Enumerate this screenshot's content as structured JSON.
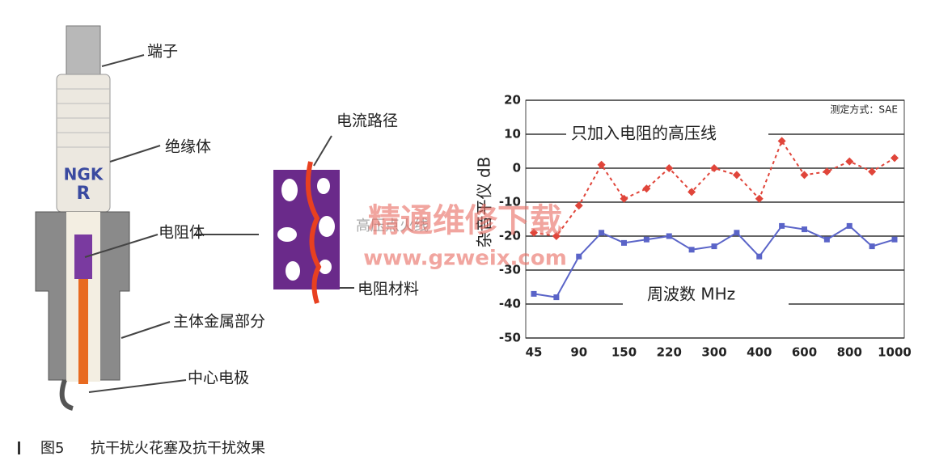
{
  "figure": {
    "labels": [
      "端子",
      "绝缘体",
      "电阻体",
      "主体金属部分",
      "中心电极",
      "电流路径",
      "电阻材料"
    ],
    "brand": "NGK",
    "brand_mark": "R",
    "caption_number": "图5",
    "caption": "抗干扰火花塞及抗干扰效果",
    "watermark": [
      "精通维修下载",
      "www.gzweix.com"
    ]
  },
  "chart_data": {
    "type": "line",
    "annotations": [
      "测定方式：SAE",
      "只加入电阻的高压线",
      "高压点火线",
      "周波数 MHz"
    ],
    "y_label": "杂音平仪 dB",
    "categories": [
      "45",
      null,
      "90",
      null,
      "150",
      null,
      "220",
      null,
      "300",
      null,
      "400",
      null,
      "600",
      null,
      "800",
      null,
      "1000"
    ],
    "series": [
      {
        "name": "只加入电阻的高压线",
        "color": "#e0453a",
        "dashed": true,
        "marker": "diamond",
        "values": [
          -19,
          -20,
          -11,
          1,
          -9,
          -6,
          0,
          -7,
          0,
          -2,
          -9,
          8,
          -2,
          -1,
          2,
          -1,
          3
        ]
      },
      {
        "name": "高压点火线",
        "color": "#5a64c8",
        "dashed": false,
        "marker": "square",
        "values": [
          -37,
          -38,
          -26,
          -19,
          -22,
          -21,
          -20,
          -24,
          -23,
          -19,
          -26,
          -17,
          -18,
          -21,
          -17,
          -23,
          -21
        ]
      }
    ],
    "ylim": [
      -50,
      20
    ],
    "yticks": [
      20,
      10,
      0,
      -10,
      -20,
      -30,
      -40,
      -50
    ],
    "grid": true
  }
}
